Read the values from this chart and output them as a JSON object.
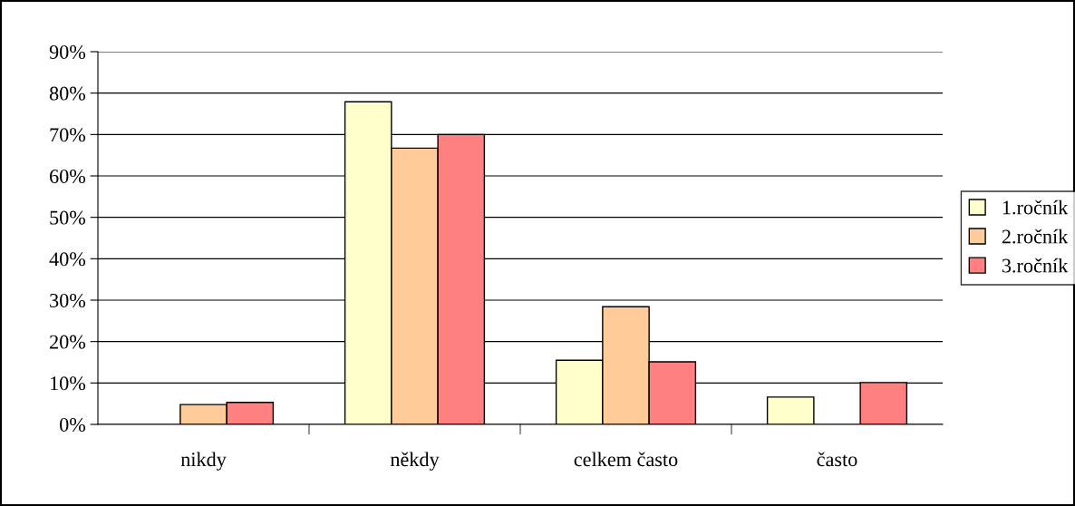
{
  "chart_data": {
    "type": "bar",
    "categories": [
      "nikdy",
      "někdy",
      "celkem často",
      "často"
    ],
    "series": [
      {
        "name": "1.ročník",
        "color": "#ffffcc",
        "values": [
          null,
          77.9,
          15.5,
          6.6
        ]
      },
      {
        "name": "2.ročník",
        "color": "#ffcc99",
        "values": [
          4.8,
          66.7,
          28.4,
          null
        ]
      },
      {
        "name": "3.ročník",
        "color": "#ff8080",
        "values": [
          5.3,
          70.0,
          15.1,
          10.1
        ]
      }
    ],
    "ylim": [
      0,
      90
    ],
    "yticks": [
      {
        "value": 0,
        "label": "0%"
      },
      {
        "value": 10,
        "label": "10%"
      },
      {
        "value": 20,
        "label": "20%"
      },
      {
        "value": 30,
        "label": "30%"
      },
      {
        "value": 40,
        "label": "40%"
      },
      {
        "value": 50,
        "label": "50%"
      },
      {
        "value": 60,
        "label": "60%"
      },
      {
        "value": 70,
        "label": "70%"
      },
      {
        "value": 80,
        "label": "80%"
      },
      {
        "value": 90,
        "label": "90%"
      }
    ],
    "grid": "y",
    "legend": "right"
  }
}
